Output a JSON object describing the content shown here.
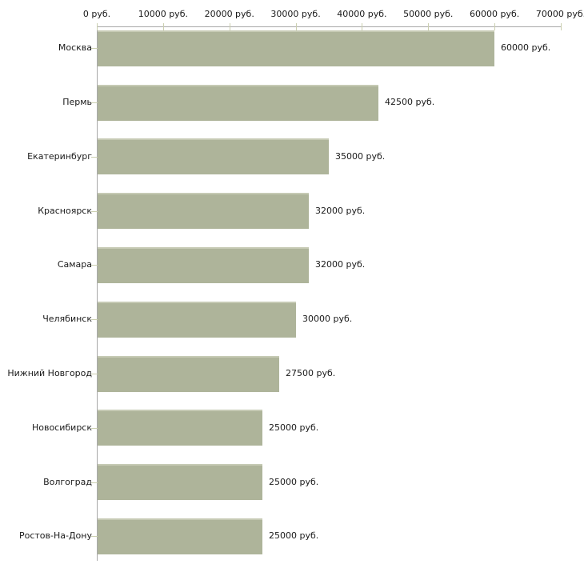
{
  "chart_data": {
    "type": "bar",
    "orientation": "horizontal",
    "unit": "руб.",
    "categories": [
      "Москва",
      "Пермь",
      "Екатеринбург",
      "Красноярск",
      "Самара",
      "Челябинск",
      "Нижний Новгород",
      "Новосибирск",
      "Волгоград",
      "Ростов-На-Дону"
    ],
    "values": [
      60000,
      42500,
      35000,
      32000,
      32000,
      30000,
      27500,
      25000,
      25000,
      25000
    ],
    "value_labels": [
      "60000 руб.",
      "42500 руб.",
      "35000 руб.",
      "32000 руб.",
      "32000 руб.",
      "30000 руб.",
      "27500 руб.",
      "25000 руб.",
      "25000 руб.",
      "25000 руб."
    ],
    "x_ticks": [
      0,
      10000,
      20000,
      30000,
      40000,
      50000,
      60000,
      70000
    ],
    "x_tick_labels": [
      "0 руб.",
      "10000 руб.",
      "20000 руб.",
      "30000 руб.",
      "40000 руб.",
      "50000 руб.",
      "60000 руб.",
      "70000 руб."
    ],
    "xlim": [
      0,
      70000
    ],
    "grid": false,
    "legend": "none",
    "colors": {
      "bar_fill": "#aeb49a",
      "bar_top_highlight": "#c6cab4",
      "axis_line": "#a9a9a9",
      "tick_mark": "#cbcfb0",
      "label_text": "#1a1a1a",
      "background": "#ffffff"
    }
  }
}
